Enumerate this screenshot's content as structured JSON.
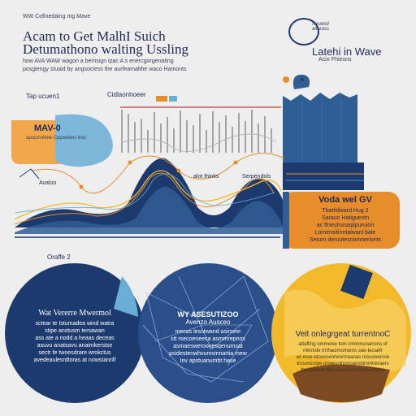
{
  "header": {
    "kicker": "WW Cofinedaing mg Mave",
    "title_line1": "Acam  to Get MalhI Suich",
    "title_line2": "Detumathono walting Ussling",
    "subtitle_line1": "how AVA WAW  wagon a bemsign ipac A s enercgorgenating",
    "subtitle_line2": "posgiengy  stuaid by angsociess the  aurfeamalthe  waco Hamonts"
  },
  "brand": {
    "icon_text": "Neuteid\naltarass",
    "title": "Latehi in Wave",
    "subtitle": "Acio Phiesns"
  },
  "labels": {
    "small_label": "Tap ucuen1",
    "chart_label": "Cidlaonhoeer",
    "mav_label": "MAV-0",
    "mav_desc": "apocinnfeiie Cppwebes lmis",
    "avaloo_label": "Avaloo",
    "thinks_label": "alot thinks",
    "serpendols_label": "Serpendols",
    "oraffe_label": "Oraffe 2"
  },
  "orange_panel": {
    "heading": "Voda wel GV",
    "lines": [
      "Tbattidward Hug 2",
      "Saraun Hatiguestn",
      "ac ftneuhsnaqiipuruion",
      "Lomensitinntalwanl bale",
      "Seturn deruutesnomnerionts"
    ]
  },
  "circles": {
    "left": {
      "heading": "Wat Vererre Mwermol",
      "lines": [
        "sctear te Istumadea wind watra",
        "stipe anstusm tersawan",
        "ass ate a nodd a heaas deceas",
        "asuvu anatsavu anaimkerstse",
        "sectr fe twoesdrare wrokctus",
        "avedeaulesrdtoras at nowstanrilf"
      ]
    },
    "middle": {
      "heading": "WY ASESUTIZOO",
      "subheading": "Avenzo Ausceo",
      "lines": [
        "mecas lesntwand asirseer",
        "stt rsecoeneesa asmmrepnos",
        "asmaesweroonesqenumsat",
        "psidestenwhvumsmnartia mew",
        "Inv apstuanumbt hase"
      ]
    },
    "right": {
      "heading": "Veit onlegrgeat turrentnoC",
      "lines": [
        "attaffing ommenie tom cmmmunarrons of",
        "mkinrde trrthacimomoms sae-Iecaefr",
        "ac ecar-etoseoeorwormoanas rosuswunsie",
        "trosonzolpe pnwesnlrpmoamstimmtreraers",
        "the aaeoas ttpo ecomstoromprecrrersn"
      ]
    }
  },
  "colors": {
    "navy": "#1d3a6e",
    "blue": "#2f5e94",
    "orange": "#e78d2a",
    "yellow": "#f2ba2a",
    "light_blue": "#6aaed6",
    "background": "#eeeeee"
  }
}
